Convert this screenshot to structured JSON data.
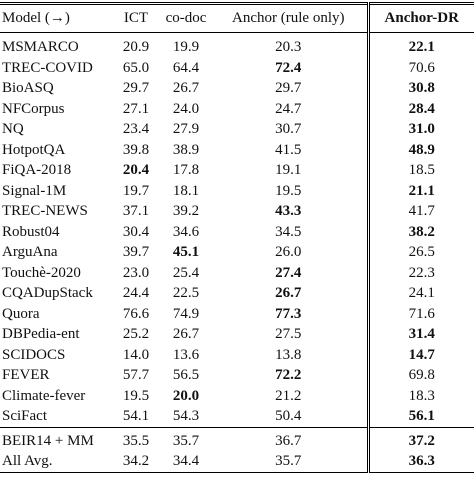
{
  "table": {
    "header": [
      "Model (→)",
      "ICT",
      "co-doc",
      "Anchor (rule only)",
      "Anchor-DR"
    ],
    "rows": [
      [
        "MSMARCO",
        "20.9",
        "19.9",
        "20.3",
        "22.1"
      ],
      [
        "TREC-COVID",
        "65.0",
        "64.4",
        "72.4",
        "70.6"
      ],
      [
        "BioASQ",
        "29.7",
        "26.7",
        "29.7",
        "30.8"
      ],
      [
        "NFCorpus",
        "27.1",
        "24.0",
        "24.7",
        "28.4"
      ],
      [
        "NQ",
        "23.4",
        "27.9",
        "30.7",
        "31.0"
      ],
      [
        "HotpotQA",
        "39.8",
        "38.9",
        "41.5",
        "48.9"
      ],
      [
        "FiQA-2018",
        "20.4",
        "17.8",
        "19.1",
        "18.5"
      ],
      [
        "Signal-1M",
        "19.7",
        "18.1",
        "19.5",
        "21.1"
      ],
      [
        "TREC-NEWS",
        "37.1",
        "39.2",
        "43.3",
        "41.7"
      ],
      [
        "Robust04",
        "30.4",
        "34.6",
        "34.5",
        "38.2"
      ],
      [
        "ArguAna",
        "39.7",
        "45.1",
        "26.0",
        "26.5"
      ],
      [
        "Touchè-2020",
        "23.0",
        "25.4",
        "27.4",
        "22.3"
      ],
      [
        "CQADupStack",
        "24.4",
        "22.5",
        "26.7",
        "24.1"
      ],
      [
        "Quora",
        "76.6",
        "74.9",
        "77.3",
        "71.6"
      ],
      [
        "DBPedia-ent",
        "25.2",
        "26.7",
        "27.5",
        "31.4"
      ],
      [
        "SCIDOCS",
        "14.0",
        "13.6",
        "13.8",
        "14.7"
      ],
      [
        "FEVER",
        "57.7",
        "56.5",
        "72.2",
        "69.8"
      ],
      [
        "Climate-fever",
        "19.5",
        "20.0",
        "21.2",
        "18.3"
      ],
      [
        "SciFact",
        "54.1",
        "54.3",
        "50.4",
        "56.1"
      ]
    ],
    "summary": [
      [
        "BEIR14 + MM",
        "35.5",
        "35.7",
        "36.7",
        "37.2"
      ],
      [
        "All Avg.",
        "34.2",
        "34.4",
        "35.7",
        "36.3"
      ]
    ]
  }
}
